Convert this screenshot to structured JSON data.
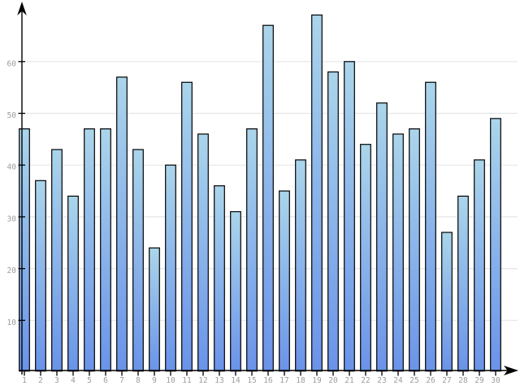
{
  "chart_data": {
    "type": "bar",
    "title": "",
    "xlabel": "",
    "ylabel": "",
    "categories": [
      "1",
      "2",
      "3",
      "4",
      "5",
      "6",
      "7",
      "8",
      "9",
      "10",
      "11",
      "12",
      "13",
      "14",
      "15",
      "16",
      "17",
      "18",
      "19",
      "20",
      "21",
      "22",
      "23",
      "24",
      "25",
      "26",
      "27",
      "28",
      "29",
      "30"
    ],
    "values": [
      47,
      37,
      43,
      34,
      47,
      47,
      57,
      43,
      24,
      40,
      56,
      46,
      36,
      31,
      47,
      67,
      35,
      41,
      69,
      58,
      60,
      44,
      52,
      46,
      47,
      56,
      27,
      34,
      41,
      49
    ],
    "y_ticks": [
      10,
      20,
      30,
      40,
      50,
      60
    ],
    "ylim": [
      0,
      70
    ],
    "grid": "horizontal",
    "legend_position": "none",
    "axes_arrows": true,
    "colors": {
      "bar_gradient_top": "#abd5ea",
      "bar_gradient_bottom": "#6a93e9",
      "bar_border": "#000000",
      "gridline": "#e6e6e6",
      "axis": "#000000",
      "tick_label": "#9c9c9c",
      "background": "#ffffff"
    }
  }
}
